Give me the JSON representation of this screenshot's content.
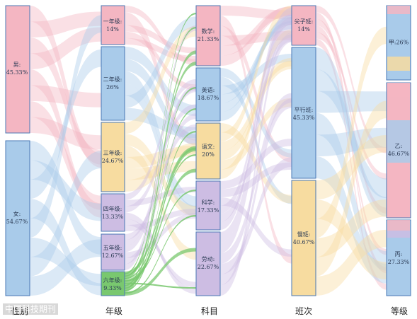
{
  "watermark": "中国科技期刊",
  "columns": [
    {
      "key": "gender",
      "title": "性别"
    },
    {
      "key": "grade",
      "title": "年级"
    },
    {
      "key": "subject",
      "title": "科目"
    },
    {
      "key": "class",
      "title": "班次"
    },
    {
      "key": "level",
      "title": "等级"
    }
  ],
  "nodes": {
    "gender": [
      {
        "id": "male",
        "name": "男:",
        "value": "45.33%",
        "share": 45.33
      },
      {
        "id": "female",
        "name": "女:",
        "value": "54.67%",
        "share": 54.67
      }
    ],
    "grade": [
      {
        "id": "g1",
        "name": "一年级:",
        "value": "14%",
        "share": 14
      },
      {
        "id": "g2",
        "name": "二年级:",
        "value": "26%",
        "share": 26
      },
      {
        "id": "g3",
        "name": "三年级:",
        "value": "24.67%",
        "share": 24.67
      },
      {
        "id": "g4",
        "name": "四年级:",
        "value": "13.33%",
        "share": 13.33
      },
      {
        "id": "g5",
        "name": "五年级:",
        "value": "12.67%",
        "share": 12.67
      },
      {
        "id": "g6",
        "name": "六年级:",
        "value": "9.33%",
        "share": 9.33
      }
    ],
    "subject": [
      {
        "id": "math",
        "name": "数学:",
        "value": "21.33%",
        "share": 21.33
      },
      {
        "id": "english",
        "name": "英语:",
        "value": "18.67%",
        "share": 18.67
      },
      {
        "id": "chinese",
        "name": "语文:",
        "value": "20%",
        "share": 20
      },
      {
        "id": "science",
        "name": "科学:",
        "value": "17.33%",
        "share": 17.33
      },
      {
        "id": "labor",
        "name": "劳动:",
        "value": "22.67%",
        "share": 22.67
      }
    ],
    "class": [
      {
        "id": "top",
        "name": "尖子班:",
        "value": "14%",
        "share": 14
      },
      {
        "id": "parallel",
        "name": "平行班:",
        "value": "45.33%",
        "share": 45.33
      },
      {
        "id": "slow",
        "name": "慢班:",
        "value": "40.67%",
        "share": 40.67
      }
    ],
    "level": [
      {
        "id": "A",
        "name": "甲:",
        "value": "26%",
        "share": 26
      },
      {
        "id": "B",
        "name": "乙:",
        "value": "46.67%",
        "share": 46.67
      },
      {
        "id": "C",
        "name": "丙:",
        "value": "27.33%",
        "share": 27.33
      }
    ]
  },
  "palette": {
    "pink": "#f4b6c2",
    "blue": "#a9cbea",
    "yellow": "#f7dca0",
    "purple": "#cdbde3",
    "green": "#79c86f",
    "node_stroke": "#4a78b5"
  },
  "node_colors": {
    "gender": [
      "pink",
      "blue"
    ],
    "grade": [
      "pink",
      "blue",
      "yellow",
      "purple",
      "purple",
      "green"
    ],
    "subject": [
      "pink",
      "blue",
      "yellow",
      "purple",
      "purple"
    ],
    "class": [
      "pink",
      "blue",
      "yellow"
    ],
    "level": [
      "blue",
      "pink",
      "blue"
    ]
  }
}
